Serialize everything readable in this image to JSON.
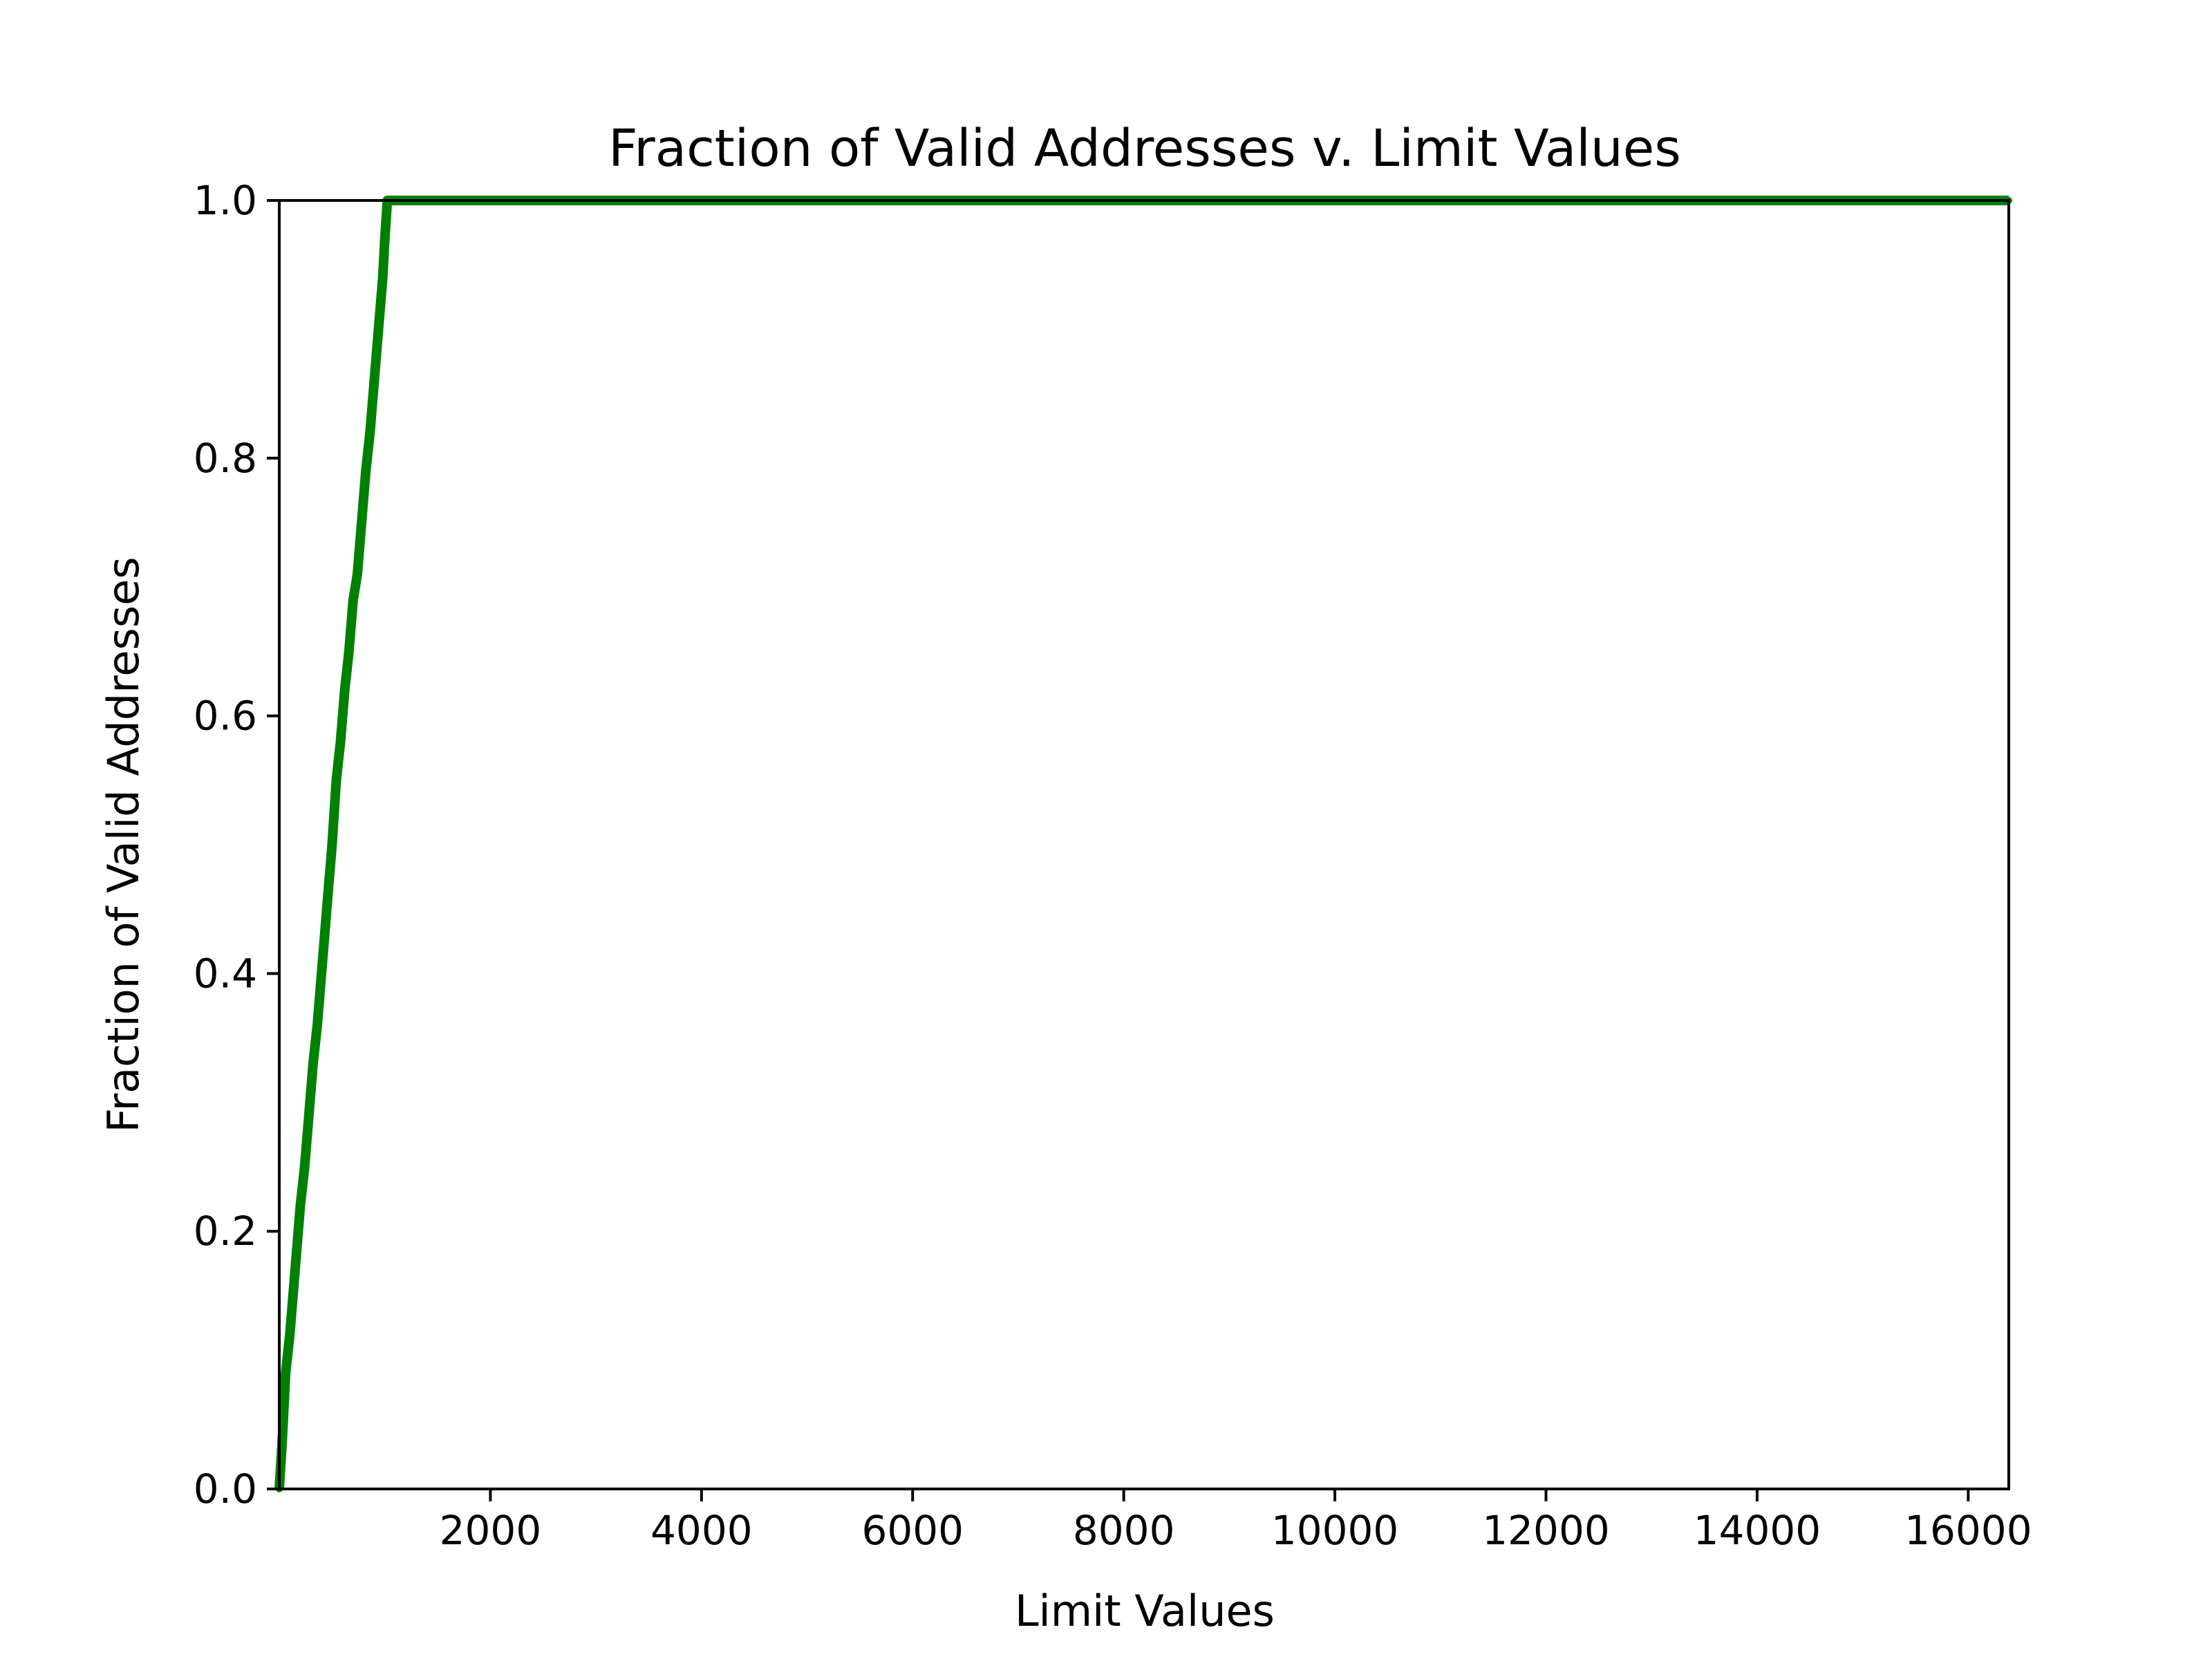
{
  "chart_data": {
    "type": "line",
    "title": "Fraction of Valid Addresses v. Limit Values",
    "xlabel": "Limit Values",
    "ylabel": "Fraction of Valid Addresses",
    "xlim": [
      0,
      16384
    ],
    "ylim": [
      0.0,
      1.0
    ],
    "xticks": [
      2000,
      4000,
      6000,
      8000,
      10000,
      12000,
      14000,
      16000
    ],
    "xtick_labels": [
      "2000",
      "4000",
      "6000",
      "8000",
      "10000",
      "12000",
      "14000",
      "16000"
    ],
    "yticks": [
      0.0,
      0.2,
      0.4,
      0.6,
      0.8,
      1.0
    ],
    "ytick_labels": [
      "0.0",
      "0.2",
      "0.4",
      "0.6",
      "0.8",
      "1.0"
    ],
    "grid": false,
    "legend": "none",
    "series": [
      {
        "color": "#008000",
        "x": [
          0,
          30,
          60,
          100,
          150,
          200,
          240,
          280,
          320,
          360,
          400,
          430,
          460,
          500,
          540,
          580,
          620,
          660,
          700,
          740,
          780,
          820,
          860,
          900,
          940,
          980,
          1000,
          1024,
          16384
        ],
        "y": [
          0.0,
          0.04,
          0.09,
          0.12,
          0.17,
          0.22,
          0.25,
          0.29,
          0.33,
          0.36,
          0.4,
          0.43,
          0.46,
          0.5,
          0.55,
          0.58,
          0.62,
          0.65,
          0.69,
          0.71,
          0.75,
          0.79,
          0.82,
          0.86,
          0.9,
          0.94,
          0.97,
          1.0,
          1.0
        ]
      }
    ]
  }
}
